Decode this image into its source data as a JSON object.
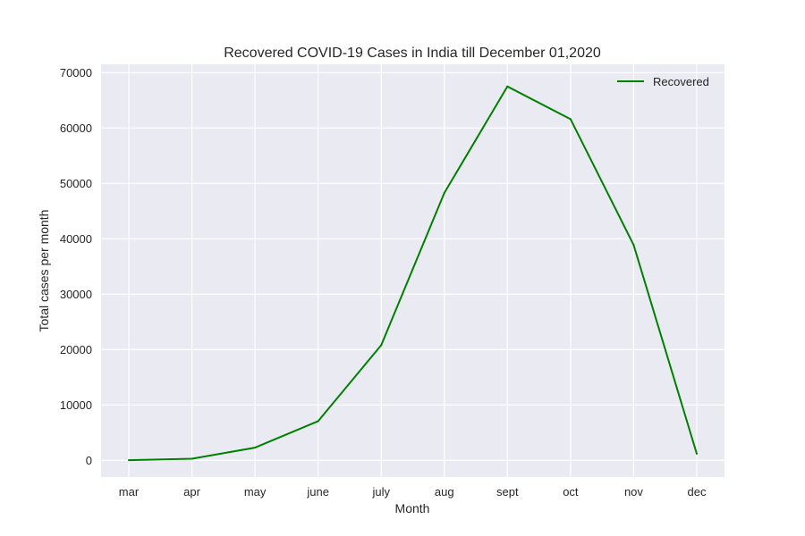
{
  "chart_data": {
    "type": "line",
    "title": "Recovered COVID-19 Cases in India till December 01,2020",
    "xlabel": "Month",
    "ylabel": "Total cases per month",
    "categories": [
      "mar",
      "apr",
      "may",
      "june",
      "july",
      "aug",
      "sept",
      "oct",
      "nov",
      "dec"
    ],
    "series": [
      {
        "name": "Recovered",
        "color": "#008000",
        "values": [
          50,
          300,
          2300,
          7100,
          20800,
          48300,
          67500,
          61600,
          38900,
          1200
        ]
      }
    ],
    "y_ticks": [
      0,
      10000,
      20000,
      30000,
      40000,
      50000,
      60000,
      70000
    ],
    "y_tick_labels": [
      "0",
      "10000",
      "20000",
      "30000",
      "40000",
      "50000",
      "60000",
      "70000"
    ],
    "ylim": [
      -3000,
      71500
    ],
    "grid": true,
    "legend_position": "top-right",
    "plot_background": "#eaeaf2"
  }
}
